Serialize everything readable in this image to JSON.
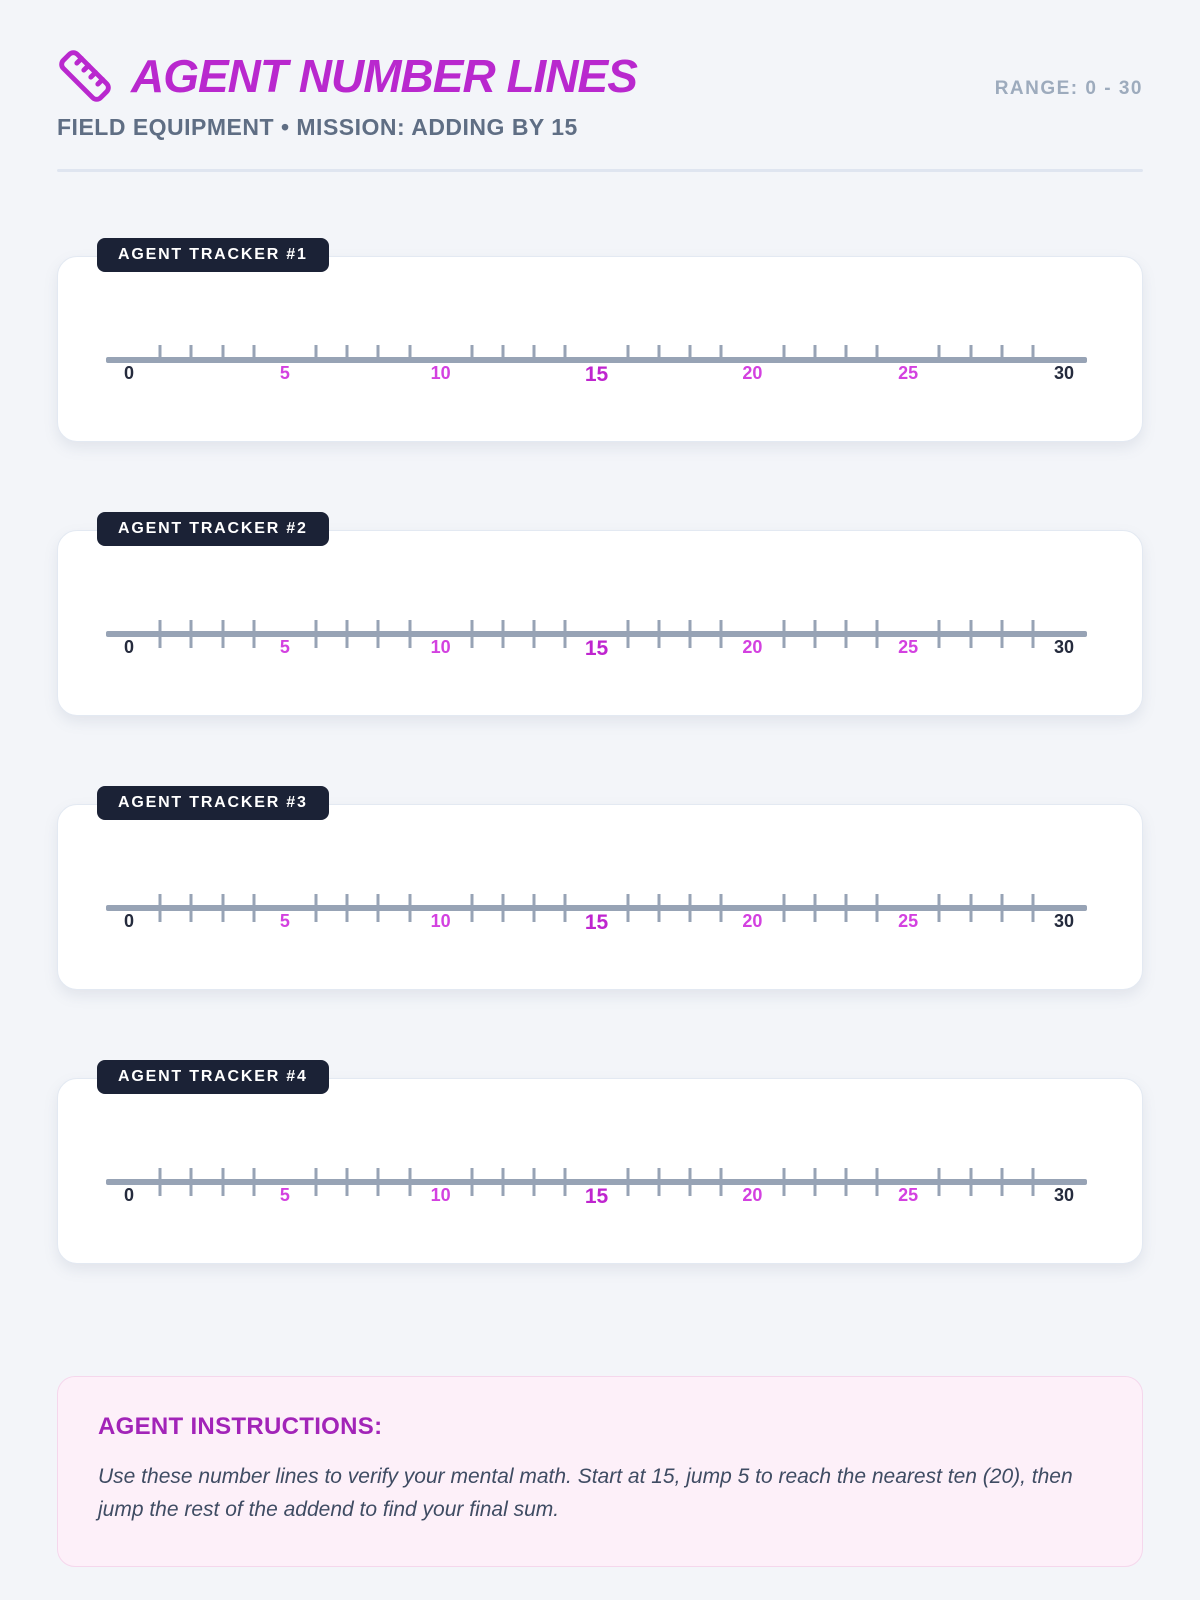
{
  "header": {
    "title": "AGENT NUMBER LINES",
    "subtitle": "FIELD EQUIPMENT • MISSION: ADDING BY 15",
    "range_label": "RANGE: 0 - 30",
    "icon": "ruler-icon"
  },
  "trackers": [
    {
      "label": "AGENT TRACKER #1",
      "tick_style": "above"
    },
    {
      "label": "AGENT TRACKER #2",
      "tick_style": "cross"
    },
    {
      "label": "AGENT TRACKER #3",
      "tick_style": "cross"
    },
    {
      "label": "AGENT TRACKER #4",
      "tick_style": "cross"
    }
  ],
  "number_line": {
    "min": 0,
    "max": 30,
    "minor_step": 1,
    "label_step": 5,
    "labeled_values": [
      0,
      5,
      10,
      15,
      20,
      25,
      30
    ],
    "highlight_value": 15,
    "endpoint_values": [
      0,
      30
    ]
  },
  "instructions": {
    "heading": "AGENT INSTRUCTIONS:",
    "body": "Use these number lines to verify your mental math. Start at 15, jump 5 to reach the nearest ten (20), then jump the rest of the addend to find your final sum."
  },
  "colors": {
    "accent": "#b928ce",
    "badge_bg": "#1b2236",
    "line": "#97a3b5",
    "endpoint": "#252b3d",
    "label": "#d341e0",
    "highlight": "#bf25cf",
    "subtitle": "#5f6e84",
    "range": "#9dabbd",
    "box_bg": "#fdf0f9",
    "box_border": "#f5d7ec",
    "box_heading": "#a224b8",
    "body_text": "#3f4c63",
    "page_bg": "#f3f5f9"
  }
}
